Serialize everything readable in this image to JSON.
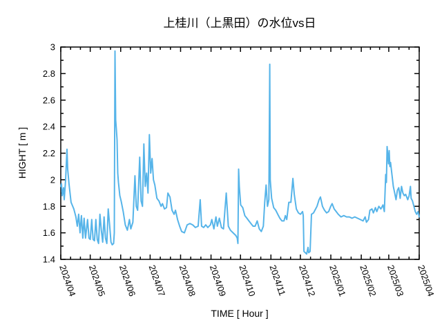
{
  "page": {
    "background": "#ffffff"
  },
  "chart_data": {
    "type": "line",
    "title": "上桂川（上黒田）の水位vs日",
    "xlabel": "TIME [ Hour ]",
    "ylabel": "HIGHT [ m ]",
    "ylim": [
      1.4,
      3.0
    ],
    "x_range_days": [
      0,
      365
    ],
    "grid": false,
    "legend": "none",
    "line_color": "#56b4e9",
    "frame_color": "#000000",
    "series_name": "water-level",
    "y_ticks": [
      {
        "v": 3.0,
        "label": "3"
      },
      {
        "v": 2.8,
        "label": "2.8"
      },
      {
        "v": 2.6,
        "label": "2.6"
      },
      {
        "v": 2.4,
        "label": "2.4"
      },
      {
        "v": 2.2,
        "label": "2.2"
      },
      {
        "v": 2.0,
        "label": "2"
      },
      {
        "v": 1.8,
        "label": "1.8"
      },
      {
        "v": 1.6,
        "label": "1.6"
      },
      {
        "v": 1.4,
        "label": "1.4"
      }
    ],
    "x_ticks": [
      {
        "day": 0,
        "label": "2024/04"
      },
      {
        "day": 30,
        "label": "2024/05"
      },
      {
        "day": 61,
        "label": "2024/06"
      },
      {
        "day": 91,
        "label": "2024/07"
      },
      {
        "day": 122,
        "label": "2024/08"
      },
      {
        "day": 153,
        "label": "2024/09"
      },
      {
        "day": 183,
        "label": "2024/10"
      },
      {
        "day": 214,
        "label": "2024/11"
      },
      {
        "day": 244,
        "label": "2024/12"
      },
      {
        "day": 275,
        "label": "2025/01"
      },
      {
        "day": 306,
        "label": "2025/02"
      },
      {
        "day": 334,
        "label": "2025/03"
      },
      {
        "day": 365,
        "label": "2025/04"
      }
    ],
    "points": [
      [
        0,
        1.95
      ],
      [
        0.7,
        1.97
      ],
      [
        1.4,
        1.88
      ],
      [
        2.8,
        1.94
      ],
      [
        3.5,
        1.85
      ],
      [
        4.9,
        2.0
      ],
      [
        6.3,
        2.23
      ],
      [
        7,
        2.08
      ],
      [
        8.4,
        1.97
      ],
      [
        10.5,
        1.83
      ],
      [
        13.3,
        1.78
      ],
      [
        15.4,
        1.72
      ],
      [
        16.8,
        1.65
      ],
      [
        18.2,
        1.74
      ],
      [
        19.6,
        1.6
      ],
      [
        21,
        1.73
      ],
      [
        22.4,
        1.56
      ],
      [
        23.8,
        1.71
      ],
      [
        25.2,
        1.56
      ],
      [
        27.3,
        1.7
      ],
      [
        28.7,
        1.56
      ],
      [
        30,
        1.55
      ],
      [
        31.5,
        1.7
      ],
      [
        32.9,
        1.55
      ],
      [
        34.3,
        1.54
      ],
      [
        35.7,
        1.7
      ],
      [
        37.1,
        1.55
      ],
      [
        38.5,
        1.52
      ],
      [
        39.9,
        1.74
      ],
      [
        41.3,
        1.62
      ],
      [
        42.7,
        1.53
      ],
      [
        44.1,
        1.72
      ],
      [
        45.5,
        1.56
      ],
      [
        46.9,
        1.52
      ],
      [
        48.3,
        1.78
      ],
      [
        49.7,
        1.66
      ],
      [
        51.1,
        1.53
      ],
      [
        52.4,
        1.51
      ],
      [
        53.8,
        1.52
      ],
      [
        54.5,
        1.6
      ],
      [
        55.2,
        2.97
      ],
      [
        55.9,
        2.45
      ],
      [
        56.6,
        2.38
      ],
      [
        57.3,
        2.3
      ],
      [
        58,
        2.05
      ],
      [
        58.7,
        1.98
      ],
      [
        60.1,
        1.88
      ],
      [
        61.5,
        1.84
      ],
      [
        63.6,
        1.76
      ],
      [
        65.7,
        1.66
      ],
      [
        67.8,
        1.62
      ],
      [
        69.9,
        1.7
      ],
      [
        71.3,
        1.63
      ],
      [
        73.4,
        1.68
      ],
      [
        75.5,
        2.03
      ],
      [
        76.9,
        1.8
      ],
      [
        78.3,
        1.77
      ],
      [
        80.4,
        2.17
      ],
      [
        81.8,
        1.84
      ],
      [
        83.2,
        1.8
      ],
      [
        84.6,
        2.27
      ],
      [
        86,
        1.95
      ],
      [
        87.4,
        2.05
      ],
      [
        88.8,
        1.9
      ],
      [
        90.2,
        2.34
      ],
      [
        91.6,
        2.05
      ],
      [
        93,
        2.16
      ],
      [
        94.4,
        2.0
      ],
      [
        95.8,
        1.96
      ],
      [
        97.9,
        1.86
      ],
      [
        100,
        1.84
      ],
      [
        102.1,
        1.8
      ],
      [
        103.5,
        1.82
      ],
      [
        105.6,
        1.78
      ],
      [
        107.7,
        1.79
      ],
      [
        109.1,
        1.9
      ],
      [
        111.2,
        1.87
      ],
      [
        113.3,
        1.77
      ],
      [
        115.4,
        1.74
      ],
      [
        116.8,
        1.77
      ],
      [
        118.9,
        1.7
      ],
      [
        121,
        1.65
      ],
      [
        123.1,
        1.61
      ],
      [
        125.9,
        1.6
      ],
      [
        128.7,
        1.66
      ],
      [
        131.5,
        1.67
      ],
      [
        134.3,
        1.66
      ],
      [
        137.1,
        1.64
      ],
      [
        139.9,
        1.65
      ],
      [
        142,
        1.85
      ],
      [
        143.4,
        1.65
      ],
      [
        145.5,
        1.64
      ],
      [
        147.6,
        1.66
      ],
      [
        149.7,
        1.64
      ],
      [
        152.4,
        1.66
      ],
      [
        153.8,
        1.7
      ],
      [
        155.9,
        1.63
      ],
      [
        158,
        1.72
      ],
      [
        159.4,
        1.65
      ],
      [
        161.5,
        1.71
      ],
      [
        163.6,
        1.64
      ],
      [
        165.7,
        1.63
      ],
      [
        168.5,
        1.9
      ],
      [
        170.6,
        1.65
      ],
      [
        172.7,
        1.62
      ],
      [
        175.5,
        1.6
      ],
      [
        178.3,
        1.58
      ],
      [
        179.7,
        1.56
      ],
      [
        180.4,
        1.52
      ],
      [
        181.1,
        2.08
      ],
      [
        181.8,
        1.95
      ],
      [
        183.2,
        1.81
      ],
      [
        185.3,
        1.79
      ],
      [
        187.4,
        1.73
      ],
      [
        189.5,
        1.71
      ],
      [
        191.6,
        1.69
      ],
      [
        193.7,
        1.67
      ],
      [
        195.8,
        1.65
      ],
      [
        197.9,
        1.65
      ],
      [
        200,
        1.69
      ],
      [
        202.1,
        1.63
      ],
      [
        204.2,
        1.61
      ],
      [
        206.3,
        1.65
      ],
      [
        207.7,
        1.83
      ],
      [
        209.1,
        1.96
      ],
      [
        210.5,
        1.8
      ],
      [
        211.9,
        1.85
      ],
      [
        212.8,
        2.87
      ],
      [
        213.3,
        2.0
      ],
      [
        214.7,
        1.86
      ],
      [
        216.8,
        1.79
      ],
      [
        218.9,
        1.77
      ],
      [
        221,
        1.74
      ],
      [
        223.1,
        1.71
      ],
      [
        225.2,
        1.69
      ],
      [
        227.3,
        1.69
      ],
      [
        228.7,
        1.73
      ],
      [
        230.1,
        1.7
      ],
      [
        232.2,
        1.83
      ],
      [
        234.3,
        1.83
      ],
      [
        236.4,
        2.01
      ],
      [
        237.8,
        1.89
      ],
      [
        239.9,
        1.78
      ],
      [
        242,
        1.75
      ],
      [
        244.1,
        1.74
      ],
      [
        246.2,
        1.76
      ],
      [
        246.9,
        1.73
      ],
      [
        247.6,
        1.46
      ],
      [
        249,
        1.45
      ],
      [
        250.4,
        1.44
      ],
      [
        251.8,
        1.49
      ],
      [
        252.5,
        1.45
      ],
      [
        253.9,
        1.46
      ],
      [
        255.3,
        1.74
      ],
      [
        257.4,
        1.75
      ],
      [
        258.8,
        1.77
      ],
      [
        260.9,
        1.8
      ],
      [
        263,
        1.85
      ],
      [
        264.4,
        1.87
      ],
      [
        266.5,
        1.8
      ],
      [
        268.6,
        1.77
      ],
      [
        270.7,
        1.75
      ],
      [
        272.8,
        1.76
      ],
      [
        274.9,
        1.8
      ],
      [
        276.3,
        1.82
      ],
      [
        278.4,
        1.78
      ],
      [
        280.5,
        1.76
      ],
      [
        282.6,
        1.74
      ],
      [
        285.4,
        1.72
      ],
      [
        288.2,
        1.73
      ],
      [
        291,
        1.72
      ],
      [
        293.8,
        1.72
      ],
      [
        296.6,
        1.71
      ],
      [
        299.4,
        1.72
      ],
      [
        302.2,
        1.71
      ],
      [
        305,
        1.7
      ],
      [
        307.8,
        1.69
      ],
      [
        309.9,
        1.72
      ],
      [
        311.3,
        1.68
      ],
      [
        313.4,
        1.7
      ],
      [
        314.8,
        1.77
      ],
      [
        316.9,
        1.78
      ],
      [
        318.3,
        1.75
      ],
      [
        320.4,
        1.79
      ],
      [
        321.8,
        1.76
      ],
      [
        323.9,
        1.8
      ],
      [
        326,
        1.78
      ],
      [
        328.1,
        1.81
      ],
      [
        329.5,
        1.76
      ],
      [
        330.9,
        2.04
      ],
      [
        331.6,
        1.98
      ],
      [
        332.3,
        2.25
      ],
      [
        333.7,
        2.12
      ],
      [
        334.4,
        2.22
      ],
      [
        335.1,
        2.1
      ],
      [
        335.8,
        2.13
      ],
      [
        337.2,
        2.04
      ],
      [
        338.6,
        1.95
      ],
      [
        340,
        1.9
      ],
      [
        341.4,
        1.85
      ],
      [
        342.8,
        1.92
      ],
      [
        344.2,
        1.94
      ],
      [
        345.6,
        1.86
      ],
      [
        347,
        1.95
      ],
      [
        348.4,
        1.9
      ],
      [
        349.8,
        1.88
      ],
      [
        351.2,
        1.89
      ],
      [
        353.3,
        1.85
      ],
      [
        354.7,
        1.88
      ],
      [
        356.1,
        1.95
      ],
      [
        356.8,
        1.86
      ],
      [
        358.2,
        1.84
      ],
      [
        359.6,
        1.8
      ],
      [
        361,
        1.76
      ],
      [
        362.4,
        1.74
      ],
      [
        363.8,
        1.76
      ],
      [
        365,
        1.72
      ]
    ]
  }
}
